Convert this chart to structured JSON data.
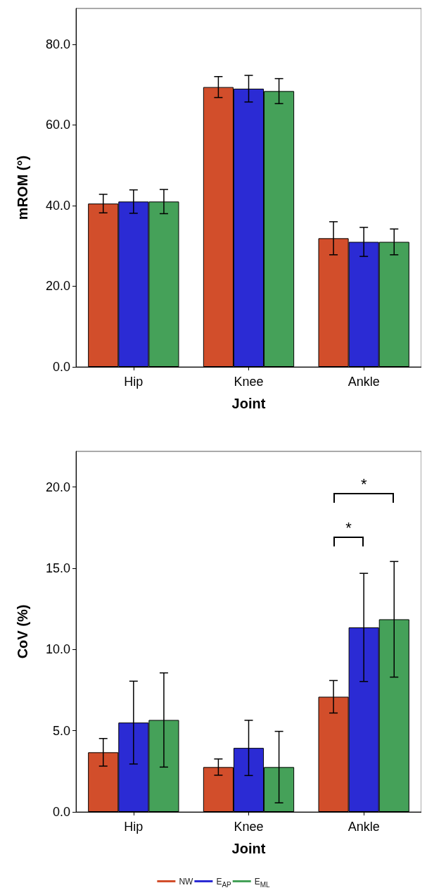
{
  "chart_data": [
    {
      "type": "bar",
      "xlabel": "Joint",
      "ylabel": "mROM (°)",
      "categories": [
        "Hip",
        "Knee",
        "Ankle"
      ],
      "series": [
        {
          "color": "#d24e2b",
          "values": [
            40.5,
            69.4,
            31.9
          ],
          "errors": [
            2.3,
            2.6,
            4.1
          ]
        },
        {
          "color": "#2b2bd4",
          "values": [
            41.0,
            69.0,
            31.0
          ],
          "errors": [
            2.9,
            3.3,
            3.6
          ]
        },
        {
          "color": "#45a159",
          "values": [
            41.0,
            68.4,
            31.0
          ],
          "errors": [
            3.0,
            3.1,
            3.2
          ]
        }
      ],
      "ylim": [
        0,
        88.9
      ],
      "yticks": [
        {
          "value": 0,
          "label": "0.0"
        },
        {
          "value": 20,
          "label": "20.0"
        },
        {
          "value": 40,
          "label": "40.0"
        },
        {
          "value": 60,
          "label": "60.0"
        },
        {
          "value": 80,
          "label": "80.0"
        }
      ],
      "grid": false,
      "legend": false
    },
    {
      "type": "bar",
      "xlabel": "Joint",
      "ylabel": "CoV (%)",
      "categories": [
        "Hip",
        "Knee",
        "Ankle"
      ],
      "series": [
        {
          "name": "NW",
          "color": "#d24e2b",
          "values": [
            3.67,
            2.76,
            7.09
          ],
          "errors": [
            0.85,
            0.5,
            1.0
          ]
        },
        {
          "name": "E$_{AP}$",
          "color": "#2b2bd4",
          "values": [
            5.5,
            3.94,
            11.36
          ],
          "errors": [
            2.55,
            1.7,
            3.33
          ]
        },
        {
          "name": "E$_{ML}$",
          "color": "#45a159",
          "values": [
            5.66,
            2.76,
            11.86
          ],
          "errors": [
            2.9,
            2.2,
            3.56
          ]
        }
      ],
      "ylim": [
        0,
        22.2
      ],
      "yticks": [
        {
          "value": 0,
          "label": "0.0"
        },
        {
          "value": 5,
          "label": "5.0"
        },
        {
          "value": 10,
          "label": "10.0"
        },
        {
          "value": 15,
          "label": "15.0"
        },
        {
          "value": 20,
          "label": "20.0"
        }
      ],
      "grid": false,
      "legend": "bottom",
      "annotations": [
        "*",
        "*"
      ]
    }
  ]
}
